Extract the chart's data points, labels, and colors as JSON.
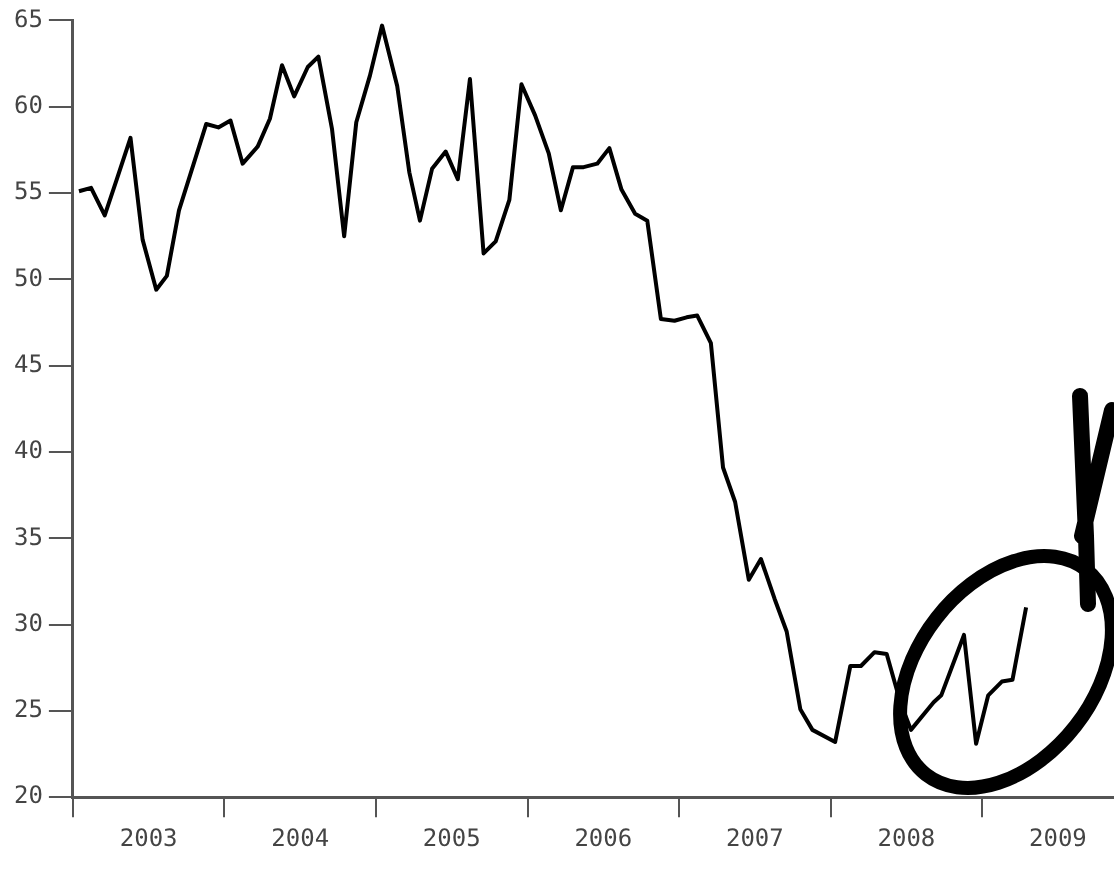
{
  "chart_data": {
    "type": "line",
    "color": "#000000",
    "marker": "none",
    "line_style": "solid",
    "grid": false,
    "legend": false,
    "x": [
      2003.04,
      2003.12,
      2003.21,
      2003.29,
      2003.38,
      2003.46,
      2003.55,
      2003.62,
      2003.7,
      2003.88,
      2003.96,
      2004.04,
      2004.12,
      2004.22,
      2004.3,
      2004.38,
      2004.46,
      2004.55,
      2004.62,
      2004.71,
      2004.79,
      2004.87,
      2004.96,
      2005.04,
      2005.14,
      2005.22,
      2005.29,
      2005.37,
      2005.46,
      2005.54,
      2005.62,
      2005.71,
      2005.79,
      2005.88,
      2005.96,
      2006.05,
      2006.14,
      2006.22,
      2006.3,
      2006.37,
      2006.46,
      2006.54,
      2006.62,
      2006.71,
      2006.79,
      2006.88,
      2006.97,
      2007.05,
      2007.12,
      2007.21,
      2007.29,
      2007.37,
      2007.46,
      2007.54,
      2007.63,
      2007.71,
      2007.8,
      2007.88,
      2008.03,
      2008.13,
      2008.2,
      2008.29,
      2008.37,
      2008.46,
      2008.53,
      2008.68,
      2008.73,
      2008.88,
      2008.96,
      2009.04,
      2009.13,
      2009.2,
      2009.29
    ],
    "values": [
      55.1,
      55.3,
      53.7,
      55.8,
      58.2,
      52.3,
      49.4,
      50.2,
      54.0,
      59.0,
      58.8,
      59.2,
      56.7,
      57.7,
      59.3,
      62.4,
      60.6,
      62.3,
      62.9,
      58.7,
      52.5,
      59.1,
      61.8,
      64.7,
      61.2,
      56.2,
      53.4,
      56.4,
      57.4,
      55.8,
      61.6,
      51.5,
      52.2,
      54.6,
      61.3,
      59.5,
      57.3,
      54.0,
      56.5,
      56.5,
      56.7,
      57.6,
      55.2,
      53.8,
      53.4,
      47.7,
      47.6,
      47.8,
      47.9,
      46.3,
      39.1,
      37.1,
      32.6,
      33.8,
      31.5,
      29.6,
      25.1,
      23.9,
      23.2,
      27.6,
      27.6,
      28.4,
      28.3,
      25.5,
      23.9,
      25.5,
      25.9,
      29.4,
      23.1,
      25.9,
      26.7,
      26.8,
      31.0
    ],
    "xlim": [
      2003,
      2009.87
    ],
    "xticks": [
      {
        "value": 2003,
        "label": null
      },
      {
        "value": 2003.5,
        "label": "2003"
      },
      {
        "value": 2004,
        "label": null
      },
      {
        "value": 2004.5,
        "label": "2004"
      },
      {
        "value": 2005,
        "label": null
      },
      {
        "value": 2005.5,
        "label": "2005"
      },
      {
        "value": 2006,
        "label": null
      },
      {
        "value": 2006.5,
        "label": "2006"
      },
      {
        "value": 2007,
        "label": null
      },
      {
        "value": 2007.5,
        "label": "2007"
      },
      {
        "value": 2008,
        "label": null
      },
      {
        "value": 2008.5,
        "label": "2008"
      },
      {
        "value": 2009,
        "label": null
      },
      {
        "value": 2009.5,
        "label": "2009"
      }
    ],
    "ylim": [
      20,
      65
    ],
    "yticks": [
      20,
      25,
      30,
      35,
      40,
      45,
      50,
      55,
      60,
      65
    ]
  }
}
